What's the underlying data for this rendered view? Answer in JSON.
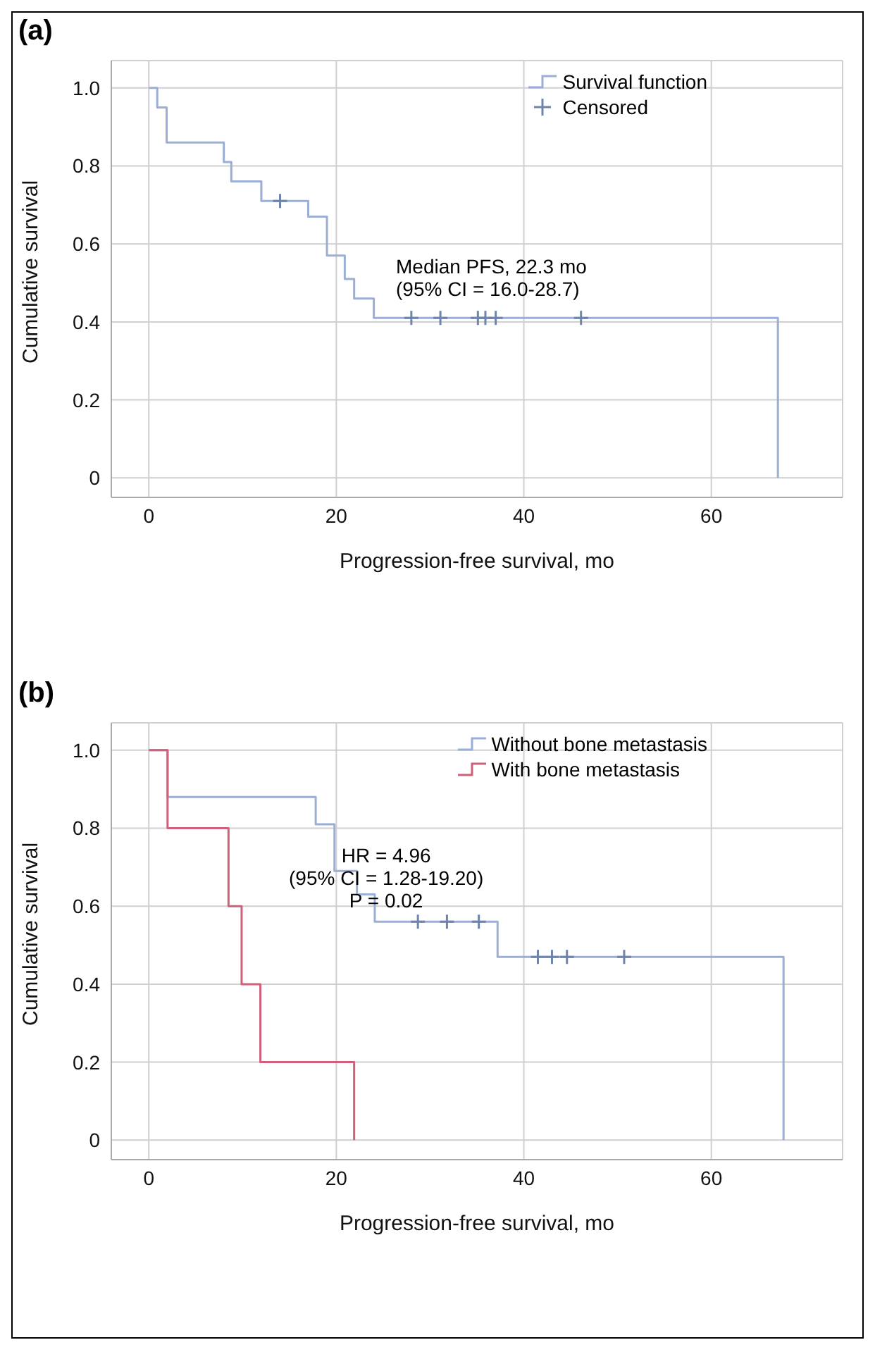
{
  "chart_data": [
    {
      "type": "step",
      "title": "(a)",
      "xlabel": "Progression-free survival, mo",
      "ylabel": "Cumulative survival",
      "xlim": [
        -4,
        74
      ],
      "ylim": [
        -0.05,
        1.07
      ],
      "xticks": [
        0,
        20,
        40,
        60
      ],
      "yticks": [
        0,
        0.2,
        0.4,
        0.6,
        0.8,
        {
          "value": 1,
          "label": "1.0"
        }
      ],
      "grid": true,
      "legend": "top right",
      "annotations": [
        "Median PFS, 22.3 mo\n(95% CI = 16.0-28.7)"
      ],
      "series": [
        {
          "name": "Survival function",
          "color": "#9aaed6",
          "x": [
            0,
            0.9,
            1.9,
            8.0,
            8.8,
            12.0,
            17.0,
            19.0,
            20.9,
            21.9,
            24.0,
            67.1
          ],
          "values": [
            1,
            0.95,
            0.86,
            0.81,
            0.76,
            0.71,
            0.67,
            0.57,
            0.51,
            0.46,
            0.41,
            0
          ]
        },
        {
          "name": "Censored",
          "type": "scatter",
          "marker": "cross",
          "color": "#6f84aa",
          "x": [
            14.0,
            28.0,
            31.1,
            35.1,
            35.9,
            37.0,
            46.1
          ],
          "values": [
            0.71,
            0.41,
            0.41,
            0.41,
            0.41,
            0.41,
            0.41
          ]
        }
      ]
    },
    {
      "type": "step",
      "title": "(b)",
      "xlabel": "Progression-free survival, mo",
      "ylabel": "Cumulative survival",
      "xlim": [
        -4,
        74
      ],
      "ylim": [
        -0.05,
        1.07
      ],
      "xticks": [
        0,
        20,
        40,
        60
      ],
      "yticks": [
        0,
        0.2,
        0.4,
        0.6,
        0.8,
        {
          "value": 1,
          "label": "1.0"
        }
      ],
      "grid": true,
      "legend": "top right",
      "annotations": [
        "HR = 4.96\n(95% CI = 1.28-19.20)\nP = 0.02"
      ],
      "series": [
        {
          "name": "Without bone metastasis",
          "color": "#9aaed6",
          "x": [
            0,
            2.0,
            17.8,
            19.8,
            22.2,
            24.1,
            37.2,
            67.7
          ],
          "values": [
            1,
            0.88,
            0.81,
            0.69,
            0.63,
            0.56,
            0.47,
            0
          ]
        },
        {
          "name": "With bone metastasis",
          "color": "#d0607a",
          "x": [
            0,
            2.0,
            8.5,
            9.9,
            11.9,
            21.9
          ],
          "values": [
            1,
            0.8,
            0.6,
            0.4,
            0.2,
            0
          ]
        },
        {
          "type": "scatter",
          "marker": "cross",
          "color": "#6f84aa",
          "x": [
            28.7,
            31.8,
            35.2,
            41.5,
            43.0,
            44.6,
            50.7
          ],
          "values": [
            0.56,
            0.56,
            0.56,
            0.47,
            0.47,
            0.47,
            0.47
          ]
        }
      ]
    }
  ]
}
